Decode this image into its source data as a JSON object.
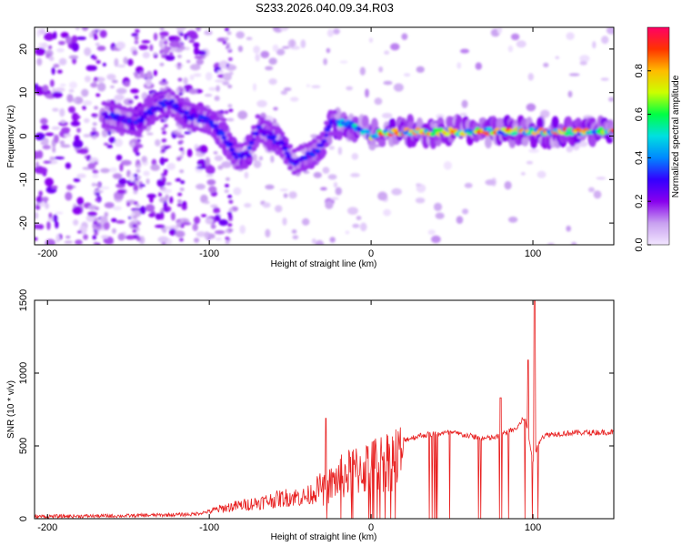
{
  "title": "S233.2026.040.09.34.R03",
  "chart_data": [
    {
      "type": "heatmap",
      "name": "spectrogram",
      "xlabel": "Height of straight line (km)",
      "ylabel": "Frequency (Hz)",
      "xlim": [
        -208,
        150
      ],
      "ylim": [
        -25,
        25
      ],
      "xticks": [
        -200,
        -100,
        0,
        100
      ],
      "yticks": [
        -20,
        -10,
        0,
        10,
        20
      ],
      "colorbar": {
        "label": "Normalized spectral amplitude",
        "range": [
          0,
          1
        ],
        "ticks": [
          0.0,
          0.2,
          0.4,
          0.6,
          0.8
        ],
        "colormap": [
          "#f2e6ff",
          "#c8a0f0",
          "#8800ee",
          "#3300ff",
          "#0088ff",
          "#00e0e0",
          "#00ff44",
          "#ccff00",
          "#ffbb00",
          "#ff3300",
          "#ff0066"
        ]
      },
      "ridge": [
        {
          "x": -165,
          "f": 5
        },
        {
          "x": -155,
          "f": 4
        },
        {
          "x": -145,
          "f": 3
        },
        {
          "x": -135,
          "f": 6
        },
        {
          "x": -125,
          "f": 8
        },
        {
          "x": -115,
          "f": 5
        },
        {
          "x": -105,
          "f": 4
        },
        {
          "x": -98,
          "f": 3
        },
        {
          "x": -90,
          "f": -1
        },
        {
          "x": -82,
          "f": -5
        },
        {
          "x": -76,
          "f": -4
        },
        {
          "x": -70,
          "f": 2
        },
        {
          "x": -62,
          "f": 0
        },
        {
          "x": -55,
          "f": -2
        },
        {
          "x": -48,
          "f": -6
        },
        {
          "x": -42,
          "f": -5
        },
        {
          "x": -36,
          "f": -4
        },
        {
          "x": -30,
          "f": -2
        },
        {
          "x": -25,
          "f": 3
        },
        {
          "x": -15,
          "f": 3
        },
        {
          "x": 0,
          "f": 0
        },
        {
          "x": 10,
          "f": 1
        },
        {
          "x": 30,
          "f": 1
        },
        {
          "x": 60,
          "f": 1
        },
        {
          "x": 90,
          "f": 1
        },
        {
          "x": 100,
          "f": 1
        },
        {
          "x": 120,
          "f": 1
        },
        {
          "x": 150,
          "f": 1
        }
      ]
    },
    {
      "type": "line",
      "name": "snr",
      "xlabel": "Height of straight line (km)",
      "ylabel": "SNR (10 * v/v)",
      "xlim": [
        -208,
        150
      ],
      "ylim": [
        0,
        1500
      ],
      "xticks": [
        -200,
        -100,
        0,
        100
      ],
      "yticks": [
        0,
        500,
        1000,
        1500
      ],
      "color": "#e82020",
      "envelope": [
        {
          "x": -208,
          "y": 15
        },
        {
          "x": -150,
          "y": 20
        },
        {
          "x": -110,
          "y": 30
        },
        {
          "x": -100,
          "y": 50
        },
        {
          "x": -90,
          "y": 75
        },
        {
          "x": -70,
          "y": 110
        },
        {
          "x": -50,
          "y": 150
        },
        {
          "x": -40,
          "y": 150
        },
        {
          "x": -30,
          "y": 230
        },
        {
          "x": -20,
          "y": 340
        },
        {
          "x": -10,
          "y": 400
        },
        {
          "x": 0,
          "y": 440
        },
        {
          "x": 10,
          "y": 490
        },
        {
          "x": 20,
          "y": 540
        },
        {
          "x": 30,
          "y": 570
        },
        {
          "x": 40,
          "y": 585
        },
        {
          "x": 50,
          "y": 590
        },
        {
          "x": 60,
          "y": 570
        },
        {
          "x": 70,
          "y": 550
        },
        {
          "x": 78,
          "y": 560
        },
        {
          "x": 85,
          "y": 600
        },
        {
          "x": 90,
          "y": 620
        },
        {
          "x": 95,
          "y": 700
        },
        {
          "x": 100,
          "y": 400
        },
        {
          "x": 105,
          "y": 560
        },
        {
          "x": 110,
          "y": 580
        },
        {
          "x": 125,
          "y": 590
        },
        {
          "x": 150,
          "y": 595
        }
      ],
      "peaks": [
        {
          "x": -28,
          "y": 690
        },
        {
          "x": 80,
          "y": 830
        },
        {
          "x": 97,
          "y": 1090
        },
        {
          "x": 101,
          "y": 1500
        }
      ]
    }
  ]
}
